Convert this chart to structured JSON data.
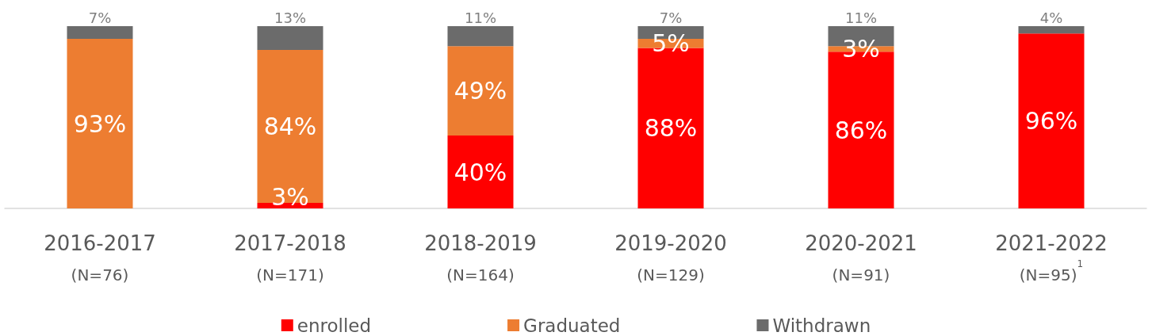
{
  "chart_data": {
    "type": "bar",
    "stacked": true,
    "categories": [
      "2016-2017\n(N=76)",
      "2017-2018\n(N=171)",
      "2018-2019\n(N=164)",
      "2019-2020\n(N=129)",
      "2020-2021\n(N=91)",
      "2021-2022\n(N=95)$^{1}$"
    ],
    "ylim": [
      0,
      100
    ],
    "tick_labels": "x",
    "legend": "bottom",
    "series": [
      {
        "name": "enrolled",
        "color": "#ff0000",
        "values": [
          0,
          3,
          40,
          88,
          86,
          96
        ],
        "value_labels": [
          null,
          "3%",
          "40%",
          "88%",
          "86%",
          "96%"
        ]
      },
      {
        "name": "Graduated",
        "color": "#ed7d31",
        "values": [
          93,
          84,
          49,
          5,
          3,
          0
        ],
        "value_labels": [
          "93%",
          "84%",
          "49%",
          "5%",
          "3%",
          null
        ]
      },
      {
        "name": "Withdrawn",
        "color": "#6b6b6b",
        "values": [
          7,
          13,
          11,
          7,
          11,
          4
        ],
        "value_labels": [
          "7%",
          "13%",
          "11%",
          "7%",
          "11%",
          "4%"
        ]
      }
    ]
  }
}
